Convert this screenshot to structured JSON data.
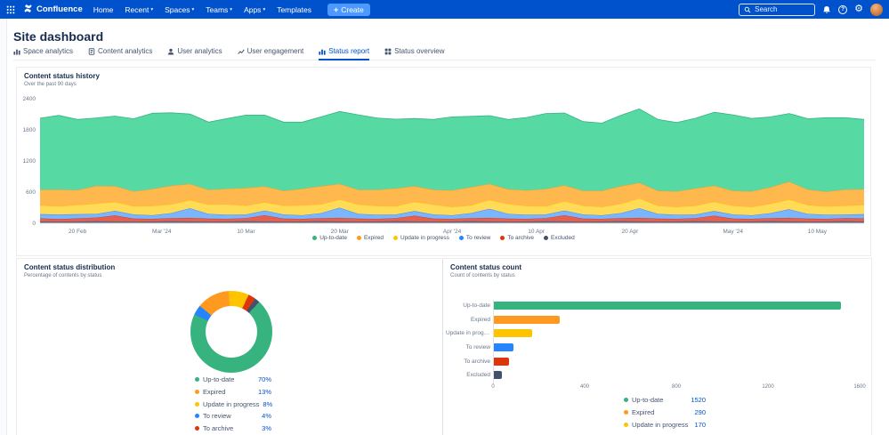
{
  "nav": {
    "product_name": "Confluence",
    "menu": [
      {
        "label": "Home",
        "dropdown": false
      },
      {
        "label": "Recent",
        "dropdown": true
      },
      {
        "label": "Spaces",
        "dropdown": true
      },
      {
        "label": "Teams",
        "dropdown": true
      },
      {
        "label": "Apps",
        "dropdown": true
      },
      {
        "label": "Templates",
        "dropdown": false
      }
    ],
    "create_label": "Create",
    "search_placeholder": "Search"
  },
  "page_title": "Site dashboard",
  "tabs": [
    {
      "label": "Space analytics",
      "active": false
    },
    {
      "label": "Content analytics",
      "active": false
    },
    {
      "label": "User analytics",
      "active": false
    },
    {
      "label": "User engagement",
      "active": false
    },
    {
      "label": "Status report",
      "active": true
    },
    {
      "label": "Status overview",
      "active": false
    }
  ],
  "palette": {
    "Up-to-date": {
      "dot": "#36B37E",
      "fill": "#57D9A3"
    },
    "Expired": {
      "dot": "#FF991F",
      "fill": "#FFB84D"
    },
    "Update in progress": {
      "dot": "#FFC400",
      "fill": "#FFDB57"
    },
    "To review": {
      "dot": "#2684FF",
      "fill": "#7AB5FF"
    },
    "To archive": {
      "dot": "#DE350B",
      "fill": "#E5604F"
    },
    "Excluded": {
      "dot": "#42526E",
      "fill": "#5E6C84"
    }
  },
  "accent_color": "#0052CC",
  "chart_data": [
    {
      "type": "area",
      "stacked": true,
      "title": "Content status history",
      "subtitle": "Over the past 90 days",
      "ylim": [
        0,
        2400
      ],
      "yticks": [
        0,
        600,
        1200,
        1800,
        2400
      ],
      "x_days_total": 88,
      "sample_interval_days": 2,
      "x_ticks": [
        {
          "label": "20 Feb",
          "day": 4
        },
        {
          "label": "Mar '24",
          "day": 13
        },
        {
          "label": "10 Mar",
          "day": 22
        },
        {
          "label": "20 Mar",
          "day": 32
        },
        {
          "label": "Apr '24",
          "day": 44
        },
        {
          "label": "10 Apr",
          "day": 53
        },
        {
          "label": "20 Apr",
          "day": 63
        },
        {
          "label": "May '24",
          "day": 74
        },
        {
          "label": "10 May",
          "day": 83
        }
      ],
      "legend": [
        "Up-to-date",
        "Expired",
        "Update in progress",
        "To review",
        "To archive",
        "Excluded"
      ],
      "stack_order_bottom_to_top": [
        "Excluded",
        "To archive",
        "To review",
        "Update in progress",
        "Expired",
        "Up-to-date"
      ],
      "series": [
        {
          "name": "Up-to-date",
          "values": [
            1380,
            1430,
            1360,
            1310,
            1350,
            1400,
            1460,
            1405,
            1345,
            1305,
            1355,
            1405,
            1375,
            1325,
            1285,
            1335,
            1395,
            1445,
            1385,
            1335,
            1305,
            1355,
            1415,
            1365,
            1315,
            1345,
            1405,
            1455,
            1395,
            1335,
            1305,
            1365,
            1425,
            1375,
            1325,
            1355,
            1415,
            1465,
            1405,
            1355,
            1315,
            1365,
            1425,
            1385,
            1345
          ]
        },
        {
          "name": "Expired",
          "values": [
            300,
            320,
            285,
            340,
            305,
            285,
            325,
            360,
            310,
            285,
            300,
            340,
            305,
            285,
            320,
            350,
            300,
            285,
            310,
            340,
            300,
            285,
            320,
            350,
            310,
            285,
            300,
            330,
            305,
            285,
            310,
            340,
            300,
            285,
            300,
            330,
            310,
            285,
            300,
            320,
            340,
            300,
            285,
            310,
            300
          ]
        },
        {
          "name": "Update in progress",
          "values": [
            170,
            160,
            180,
            200,
            170,
            160,
            180,
            170,
            160,
            180,
            200,
            170,
            160,
            170,
            190,
            170,
            160,
            180,
            170,
            160,
            180,
            190,
            160,
            150,
            170,
            190,
            170,
            160,
            180,
            170,
            160,
            180,
            190,
            160,
            150,
            170,
            180,
            170,
            160,
            180,
            190,
            170,
            160,
            170,
            180
          ]
        },
        {
          "name": "To review",
          "values": [
            80,
            90,
            80,
            70,
            90,
            80,
            70,
            95,
            185,
            90,
            80,
            70,
            90,
            80,
            70,
            95,
            195,
            90,
            80,
            70,
            90,
            80,
            70,
            95,
            175,
            90,
            80,
            70,
            90,
            80,
            70,
            95,
            185,
            90,
            80,
            70,
            90,
            80,
            70,
            95,
            165,
            90,
            80,
            70,
            80
          ]
        },
        {
          "name": "To archive",
          "values": [
            60,
            50,
            60,
            70,
            115,
            60,
            50,
            60,
            70,
            60,
            50,
            60,
            120,
            60,
            50,
            60,
            70,
            60,
            50,
            60,
            110,
            60,
            50,
            60,
            70,
            60,
            50,
            60,
            120,
            60,
            50,
            60,
            70,
            60,
            50,
            60,
            110,
            60,
            50,
            60,
            70,
            60,
            50,
            60,
            60
          ]
        },
        {
          "name": "Excluded",
          "values": [
            35,
            30,
            35,
            40,
            35,
            30,
            35,
            40,
            35,
            30,
            35,
            40,
            35,
            30,
            35,
            40,
            35,
            30,
            35,
            40,
            35,
            30,
            35,
            40,
            35,
            30,
            35,
            40,
            35,
            30,
            35,
            40,
            35,
            30,
            35,
            40,
            35,
            30,
            35,
            40,
            35,
            30,
            35,
            40,
            35
          ]
        }
      ]
    },
    {
      "type": "pie",
      "donut": true,
      "title": "Content status distribution",
      "subtitle": "Percentage of contents by status",
      "slices": [
        {
          "name": "Up-to-date",
          "pct": 70
        },
        {
          "name": "Expired",
          "pct": 13
        },
        {
          "name": "Update in progress",
          "pct": 8
        },
        {
          "name": "To review",
          "pct": 4
        },
        {
          "name": "To archive",
          "pct": 3
        },
        {
          "name": "Excluded",
          "pct": 2
        }
      ]
    },
    {
      "type": "bar",
      "horizontal": true,
      "title": "Content status count",
      "subtitle": "Count of contents by status",
      "categories": [
        "Up-to-date",
        "Expired",
        "Update in progress",
        "To review",
        "To archive",
        "Excluded"
      ],
      "values": [
        1520,
        290,
        170,
        90,
        70,
        40
      ],
      "xlim": [
        0,
        1600
      ],
      "xticks": [
        0,
        400,
        800,
        1200,
        1600
      ],
      "legend_counts": [
        {
          "name": "Up-to-date",
          "count": 1520
        },
        {
          "name": "Expired",
          "count": 290
        },
        {
          "name": "Update in progress",
          "count": 170
        }
      ]
    }
  ]
}
